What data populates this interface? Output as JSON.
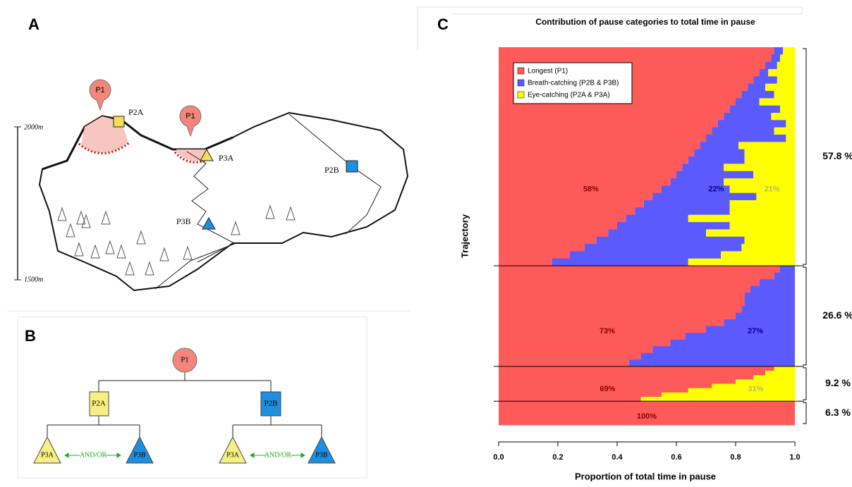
{
  "panel_a": {
    "letter": "A",
    "scale_top": "2000m",
    "scale_bottom": "1500m",
    "markers": [
      "P1",
      "P1",
      "P2A",
      "P3A",
      "P2B",
      "P3B"
    ]
  },
  "panel_b": {
    "letter": "B",
    "nodes": [
      "P1",
      "P2A",
      "P2B",
      "P3A",
      "P3B",
      "P3A",
      "P3B"
    ],
    "links": [
      "AND/OR",
      "AND/OR"
    ]
  },
  "chart_data": {
    "type": "stacked_barh",
    "panel": "C",
    "title": "Contribution of pause categories to total time in pause",
    "x_label": "Proportion of total time in pause",
    "y_label": "Trajectory",
    "xlim": [
      0,
      1
    ],
    "xticks": [
      {
        "value": 0,
        "label": "0.0"
      },
      0.2,
      0.4,
      0.6,
      0.8,
      {
        "value": 1,
        "label": "1.0"
      }
    ],
    "series": [
      {
        "name": "Longest (P1)",
        "color": "#ff5a5a"
      },
      {
        "name": "Breath-catching (P2B & P3B)",
        "color": "#5a5aff"
      },
      {
        "name": "Eye-catching (P2A & P3A)",
        "color": "#ffff00"
      }
    ],
    "groups": [
      {
        "share": {
          "value": 57.8,
          "label": "57.8 %"
        },
        "value_labels": [
          "58%",
          "22%",
          "21%"
        ],
        "rows": [
          [
            0.93,
            0.03,
            0.04
          ],
          [
            0.92,
            0.03,
            0.05
          ],
          [
            0.9,
            0.04,
            0.06
          ],
          [
            0.88,
            0.03,
            0.09
          ],
          [
            0.86,
            0.08,
            0.06
          ],
          [
            0.84,
            0.06,
            0.1
          ],
          [
            0.82,
            0.11,
            0.07
          ],
          [
            0.8,
            0.08,
            0.12
          ],
          [
            0.78,
            0.17,
            0.05
          ],
          [
            0.76,
            0.16,
            0.08
          ],
          [
            0.74,
            0.23,
            0.03
          ],
          [
            0.72,
            0.21,
            0.07
          ],
          [
            0.7,
            0.27,
            0.03
          ],
          [
            0.68,
            0.13,
            0.19
          ],
          [
            0.66,
            0.17,
            0.17
          ],
          [
            0.64,
            0.19,
            0.17
          ],
          [
            0.62,
            0.14,
            0.24
          ],
          [
            0.6,
            0.26,
            0.14
          ],
          [
            0.58,
            0.18,
            0.24
          ],
          [
            0.55,
            0.23,
            0.22
          ],
          [
            0.52,
            0.35,
            0.13
          ],
          [
            0.49,
            0.29,
            0.22
          ],
          [
            0.46,
            0.32,
            0.22
          ],
          [
            0.43,
            0.21,
            0.36
          ],
          [
            0.4,
            0.38,
            0.22
          ],
          [
            0.37,
            0.33,
            0.3
          ],
          [
            0.33,
            0.5,
            0.17
          ],
          [
            0.29,
            0.53,
            0.18
          ],
          [
            0.24,
            0.51,
            0.25
          ],
          [
            0.18,
            0.46,
            0.36
          ]
        ]
      },
      {
        "share": {
          "value": 26.6,
          "label": "26.6 %"
        },
        "value_labels": [
          "73%",
          "27%",
          null
        ],
        "rows": [
          [
            0.95,
            0.05,
            0
          ],
          [
            0.93,
            0.07,
            0
          ],
          [
            0.88,
            0.12,
            0
          ],
          [
            0.85,
            0.15,
            0
          ],
          [
            0.83,
            0.17,
            0
          ],
          [
            0.83,
            0.17,
            0
          ],
          [
            0.82,
            0.18,
            0
          ],
          [
            0.8,
            0.2,
            0
          ],
          [
            0.76,
            0.24,
            0
          ],
          [
            0.7,
            0.3,
            0
          ],
          [
            0.63,
            0.37,
            0
          ],
          [
            0.58,
            0.42,
            0
          ],
          [
            0.52,
            0.48,
            0
          ],
          [
            0.48,
            0.52,
            0
          ],
          [
            0.44,
            0.56,
            0
          ]
        ]
      },
      {
        "share": {
          "value": 9.2,
          "label": "9.2 %"
        },
        "value_labels": [
          "69%",
          null,
          "31%"
        ],
        "rows": [
          [
            0.93,
            0,
            0.07
          ],
          [
            0.9,
            0,
            0.1
          ],
          [
            0.86,
            0,
            0.14
          ],
          [
            0.8,
            0,
            0.2
          ],
          [
            0.72,
            0,
            0.28
          ],
          [
            0.64,
            0,
            0.36
          ],
          [
            0.55,
            0,
            0.45
          ],
          [
            0.48,
            0,
            0.52
          ]
        ]
      },
      {
        "share": {
          "value": 6.3,
          "label": "6.3 %"
        },
        "value_labels": [
          "100%",
          null,
          null
        ],
        "rows": [
          [
            1,
            0,
            0
          ],
          [
            1,
            0,
            0
          ],
          [
            1,
            0,
            0
          ]
        ]
      }
    ]
  }
}
